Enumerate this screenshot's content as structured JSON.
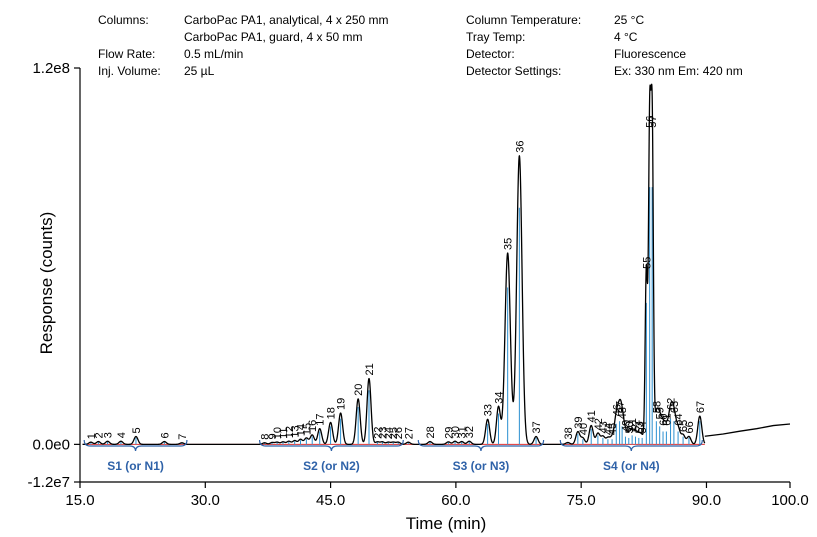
{
  "chart_data": {
    "type": "line",
    "xlabel": "Time (min)",
    "ylabel": "Response (counts)",
    "xlim": [
      15.0,
      100.0
    ],
    "ylim": [
      -12000000,
      120000000
    ],
    "x_ticks": [
      "15.0",
      "30.0",
      "45.0",
      "60.0",
      "75.0",
      "90.0",
      "100.0"
    ],
    "y_ticks": [
      {
        "value": -12000000,
        "label": "-1.2e7"
      },
      {
        "value": 0,
        "label": "0.0e0"
      },
      {
        "value": 120000000,
        "label": "1.2e8"
      }
    ],
    "grid": false,
    "line_color": "#000000",
    "baseline_color": "#e03030",
    "marker_color": "#2a8fd0",
    "section_color": "#2f62a8",
    "info_block": {
      "left": [
        {
          "key": "Columns:",
          "value": "CarboPac PA1, analytical, 4 x 250 mm"
        },
        {
          "key": "",
          "value": "CarboPac PA1, guard, 4 x 50 mm"
        },
        {
          "key": "Flow Rate:",
          "value": "0.5 mL/min"
        },
        {
          "key": "Inj. Volume:",
          "value": "25 µL"
        }
      ],
      "right": [
        {
          "key": "Column Temperature:",
          "value": "25 °C"
        },
        {
          "key": "Tray Temp:",
          "value": "4 °C"
        },
        {
          "key": "Detector:",
          "value": "Fluorescence"
        },
        {
          "key": "Detector Settings:",
          "value": "Ex: 330 nm Em: 420 nm"
        }
      ]
    },
    "sections": [
      {
        "label": "S1 (or N1)",
        "x_start": 15.5,
        "x_end": 27.8
      },
      {
        "label": "S2 (or N2)",
        "x_start": 36.5,
        "x_end": 53.7
      },
      {
        "label": "S3 (or N3)",
        "x_start": 55.5,
        "x_end": 70.5
      },
      {
        "label": "S4 (or N4)",
        "x_start": 72.5,
        "x_end": 89.5
      }
    ],
    "peaks": [
      {
        "label": "1",
        "x": 16.3,
        "y": 700000
      },
      {
        "label": "2",
        "x": 17.2,
        "y": 900000
      },
      {
        "label": "3",
        "x": 18.3,
        "y": 1000000
      },
      {
        "label": "4",
        "x": 19.9,
        "y": 1000000
      },
      {
        "label": "5",
        "x": 21.7,
        "y": 2500000
      },
      {
        "label": "6",
        "x": 25.1,
        "y": 900000
      },
      {
        "label": "7",
        "x": 27.2,
        "y": 500000
      },
      {
        "label": "8",
        "x": 37.1,
        "y": 500000
      },
      {
        "label": "9",
        "x": 38.0,
        "y": 600000
      },
      {
        "label": "10",
        "x": 38.6,
        "y": 700000
      },
      {
        "label": "11",
        "x": 39.3,
        "y": 800000
      },
      {
        "label": "12",
        "x": 40.0,
        "y": 1000000
      },
      {
        "label": "13",
        "x": 40.7,
        "y": 1200000
      },
      {
        "label": "14",
        "x": 41.4,
        "y": 1600000
      },
      {
        "label": "15",
        "x": 42.1,
        "y": 2000000
      },
      {
        "label": "16",
        "x": 42.8,
        "y": 3000000
      },
      {
        "label": "17",
        "x": 43.7,
        "y": 5000000
      },
      {
        "label": "18",
        "x": 45.0,
        "y": 7000000
      },
      {
        "label": "19",
        "x": 46.2,
        "y": 10000000
      },
      {
        "label": "20",
        "x": 48.3,
        "y": 14500000
      },
      {
        "label": "21",
        "x": 49.6,
        "y": 21000000
      },
      {
        "label": "22",
        "x": 50.6,
        "y": 800000
      },
      {
        "label": "23",
        "x": 51.2,
        "y": 800000
      },
      {
        "label": "24",
        "x": 51.9,
        "y": 700000
      },
      {
        "label": "25",
        "x": 52.5,
        "y": 700000
      },
      {
        "label": "26",
        "x": 53.1,
        "y": 700000
      },
      {
        "label": "27",
        "x": 54.3,
        "y": 700000
      },
      {
        "label": "28",
        "x": 56.9,
        "y": 900000
      },
      {
        "label": "29",
        "x": 59.1,
        "y": 800000
      },
      {
        "label": "30",
        "x": 59.9,
        "y": 1000000
      },
      {
        "label": "31",
        "x": 60.7,
        "y": 900000
      },
      {
        "label": "32",
        "x": 61.6,
        "y": 1000000
      },
      {
        "label": "33",
        "x": 63.8,
        "y": 8000000
      },
      {
        "label": "34",
        "x": 65.1,
        "y": 12000000
      },
      {
        "label": "35",
        "x": 66.2,
        "y": 61000000
      },
      {
        "label": "36",
        "x": 67.6,
        "y": 92000000
      },
      {
        "label": "37",
        "x": 69.6,
        "y": 2500000
      },
      {
        "label": "38",
        "x": 73.4,
        "y": 600000
      },
      {
        "label": "39",
        "x": 74.6,
        "y": 4000000
      },
      {
        "label": "40",
        "x": 75.2,
        "y": 2000000
      },
      {
        "label": "41",
        "x": 76.2,
        "y": 6000000
      },
      {
        "label": "42",
        "x": 77.0,
        "y": 3500000
      },
      {
        "label": "43",
        "x": 77.6,
        "y": 2500000
      },
      {
        "label": "44",
        "x": 78.2,
        "y": 2000000
      },
      {
        "label": "45",
        "x": 78.7,
        "y": 2000000
      },
      {
        "label": "46",
        "x": 79.2,
        "y": 8000000
      },
      {
        "label": "47",
        "x": 79.6,
        "y": 9000000
      },
      {
        "label": "48",
        "x": 79.9,
        "y": 7000000
      },
      {
        "label": "49",
        "x": 80.3,
        "y": 3000000
      },
      {
        "label": "50",
        "x": 80.7,
        "y": 2500000
      },
      {
        "label": "51",
        "x": 81.1,
        "y": 3500000
      },
      {
        "label": "52",
        "x": 81.5,
        "y": 3000000
      },
      {
        "label": "53",
        "x": 81.9,
        "y": 2500000
      },
      {
        "label": "54",
        "x": 82.3,
        "y": 2500000
      },
      {
        "label": "55",
        "x": 82.8,
        "y": 55000000
      },
      {
        "label": "56",
        "x": 83.2,
        "y": 100000000
      },
      {
        "label": "57",
        "x": 83.5,
        "y": 100000000
      },
      {
        "label": "58",
        "x": 84.0,
        "y": 9000000
      },
      {
        "label": "59",
        "x": 84.4,
        "y": 7000000
      },
      {
        "label": "60",
        "x": 84.8,
        "y": 5000000
      },
      {
        "label": "61",
        "x": 85.2,
        "y": 5000000
      },
      {
        "label": "62",
        "x": 85.7,
        "y": 10000000
      },
      {
        "label": "63",
        "x": 86.1,
        "y": 9000000
      },
      {
        "label": "64",
        "x": 86.6,
        "y": 5000000
      },
      {
        "label": "65",
        "x": 87.2,
        "y": 3000000
      },
      {
        "label": "66",
        "x": 87.9,
        "y": 2500000
      },
      {
        "label": "67",
        "x": 89.2,
        "y": 9000000
      }
    ],
    "end_segment": [
      {
        "x": 89.8,
        "y": 2600000
      },
      {
        "x": 92.0,
        "y": 3300000
      },
      {
        "x": 94.0,
        "y": 4200000
      },
      {
        "x": 96.0,
        "y": 5000000
      },
      {
        "x": 98.0,
        "y": 6000000
      },
      {
        "x": 100.0,
        "y": 6500000
      }
    ]
  }
}
